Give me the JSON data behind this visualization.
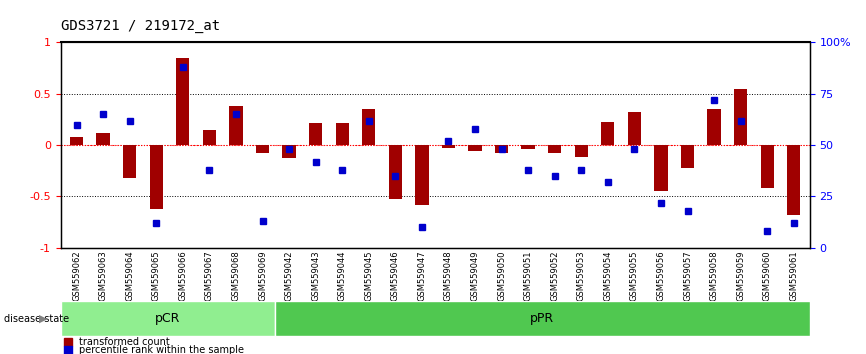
{
  "title": "GDS3721 / 219172_at",
  "samples": [
    "GSM559062",
    "GSM559063",
    "GSM559064",
    "GSM559065",
    "GSM559066",
    "GSM559067",
    "GSM559068",
    "GSM559069",
    "GSM559042",
    "GSM559043",
    "GSM559044",
    "GSM559045",
    "GSM559046",
    "GSM559047",
    "GSM559048",
    "GSM559049",
    "GSM559050",
    "GSM559051",
    "GSM559052",
    "GSM559053",
    "GSM559054",
    "GSM559055",
    "GSM559056",
    "GSM559057",
    "GSM559058",
    "GSM559059",
    "GSM559060",
    "GSM559061"
  ],
  "bar_values": [
    0.08,
    0.12,
    -0.32,
    -0.62,
    0.85,
    0.15,
    0.38,
    -0.08,
    -0.13,
    0.22,
    0.22,
    0.35,
    -0.52,
    -0.58,
    -0.03,
    -0.06,
    -0.08,
    -0.04,
    -0.08,
    -0.12,
    0.23,
    0.32,
    -0.45,
    -0.22,
    0.35,
    0.55,
    -0.42,
    -0.68
  ],
  "dot_values": [
    0.6,
    0.65,
    0.62,
    0.12,
    0.88,
    0.38,
    0.65,
    0.13,
    0.48,
    0.42,
    0.38,
    0.62,
    0.35,
    0.1,
    0.52,
    0.58,
    0.48,
    0.38,
    0.35,
    0.38,
    0.32,
    0.48,
    0.22,
    0.18,
    0.72,
    0.62,
    0.08,
    0.12
  ],
  "pCR_count": 8,
  "pPR_count": 20,
  "bar_color": "#a00000",
  "dot_color": "#0000cc",
  "pCR_color": "#90ee90",
  "pPR_color": "#50c850",
  "ylabel_left": "transformed count",
  "ylabel_right": "%",
  "legend_bar": "transformed count",
  "legend_dot": "percentile rank within the sample",
  "disease_label": "disease state",
  "pCR_label": "pCR",
  "pPR_label": "pPR"
}
